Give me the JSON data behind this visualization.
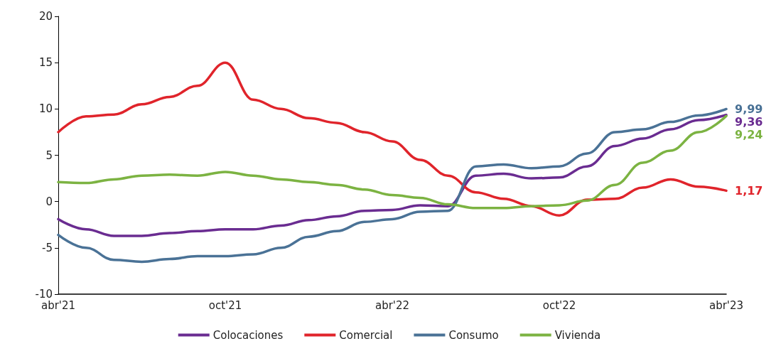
{
  "chart_data": {
    "type": "line",
    "categories": [
      "abr'21",
      null,
      null,
      null,
      null,
      null,
      "oct'21",
      null,
      null,
      null,
      null,
      null,
      "abr'22",
      null,
      null,
      null,
      null,
      null,
      "oct'22",
      null,
      null,
      null,
      null,
      null,
      "abr'23"
    ],
    "series": [
      {
        "name": "Colocaciones",
        "color": "#6a2c91",
        "values": [
          -1.9,
          -3.0,
          -3.7,
          -3.7,
          -3.4,
          -3.2,
          -3.0,
          -3.0,
          -2.6,
          -2.0,
          -1.6,
          -1.0,
          -0.9,
          -0.4,
          -0.5,
          2.8,
          3.0,
          2.5,
          2.6,
          3.8,
          6.0,
          6.8,
          7.8,
          8.8,
          9.36
        ],
        "value_labels": [
          null,
          null,
          null,
          null,
          null,
          null,
          null,
          null,
          null,
          null,
          null,
          null,
          null,
          null,
          null,
          null,
          null,
          null,
          null,
          null,
          null,
          null,
          null,
          null,
          "9,36"
        ]
      },
      {
        "name": "Comercial",
        "color": "#e0242b",
        "values": [
          7.5,
          9.2,
          9.4,
          10.5,
          11.3,
          12.5,
          15,
          11,
          10,
          9,
          8.5,
          7.5,
          6.5,
          4.5,
          2.8,
          1,
          0.3,
          -0.5,
          -1.5,
          0.2,
          0.3,
          1.5,
          2.4,
          1.6,
          1.17
        ],
        "value_labels": [
          null,
          null,
          null,
          null,
          null,
          null,
          null,
          null,
          null,
          null,
          null,
          null,
          null,
          null,
          null,
          null,
          null,
          null,
          null,
          null,
          null,
          null,
          null,
          null,
          "1,17"
        ]
      },
      {
        "name": "Consumo",
        "color": "#4a7296",
        "values": [
          -3.6,
          -5.0,
          -6.3,
          -6.5,
          -6.2,
          -5.9,
          -5.9,
          -5.7,
          -5.0,
          -3.8,
          -3.2,
          -2.2,
          -1.9,
          -1.1,
          -1.0,
          3.8,
          4.0,
          3.6,
          3.8,
          5.2,
          7.5,
          7.8,
          8.6,
          9.3,
          9.99
        ],
        "value_labels": [
          null,
          null,
          null,
          null,
          null,
          null,
          null,
          null,
          null,
          null,
          null,
          null,
          null,
          null,
          null,
          null,
          null,
          null,
          null,
          null,
          null,
          null,
          null,
          null,
          "9,99"
        ]
      },
      {
        "name": "Vivienda",
        "color": "#7cb342",
        "values": [
          2.1,
          2.0,
          2.4,
          2.8,
          2.9,
          2.8,
          3.2,
          2.8,
          2.4,
          2.1,
          1.8,
          1.3,
          0.7,
          0.4,
          -0.3,
          -0.7,
          -0.7,
          -0.5,
          -0.4,
          0.1,
          1.8,
          4.2,
          5.5,
          7.5,
          9.24
        ],
        "value_labels": [
          null,
          null,
          null,
          null,
          null,
          null,
          null,
          null,
          null,
          null,
          null,
          null,
          null,
          null,
          null,
          null,
          null,
          null,
          null,
          null,
          null,
          null,
          null,
          null,
          "9,24"
        ]
      }
    ],
    "ylim": [
      -10,
      20
    ],
    "yticks": [
      -10,
      -5,
      0,
      5,
      10,
      15,
      20
    ],
    "grid": false,
    "legend": "bottom",
    "marker": "none",
    "line_style": "solid"
  }
}
